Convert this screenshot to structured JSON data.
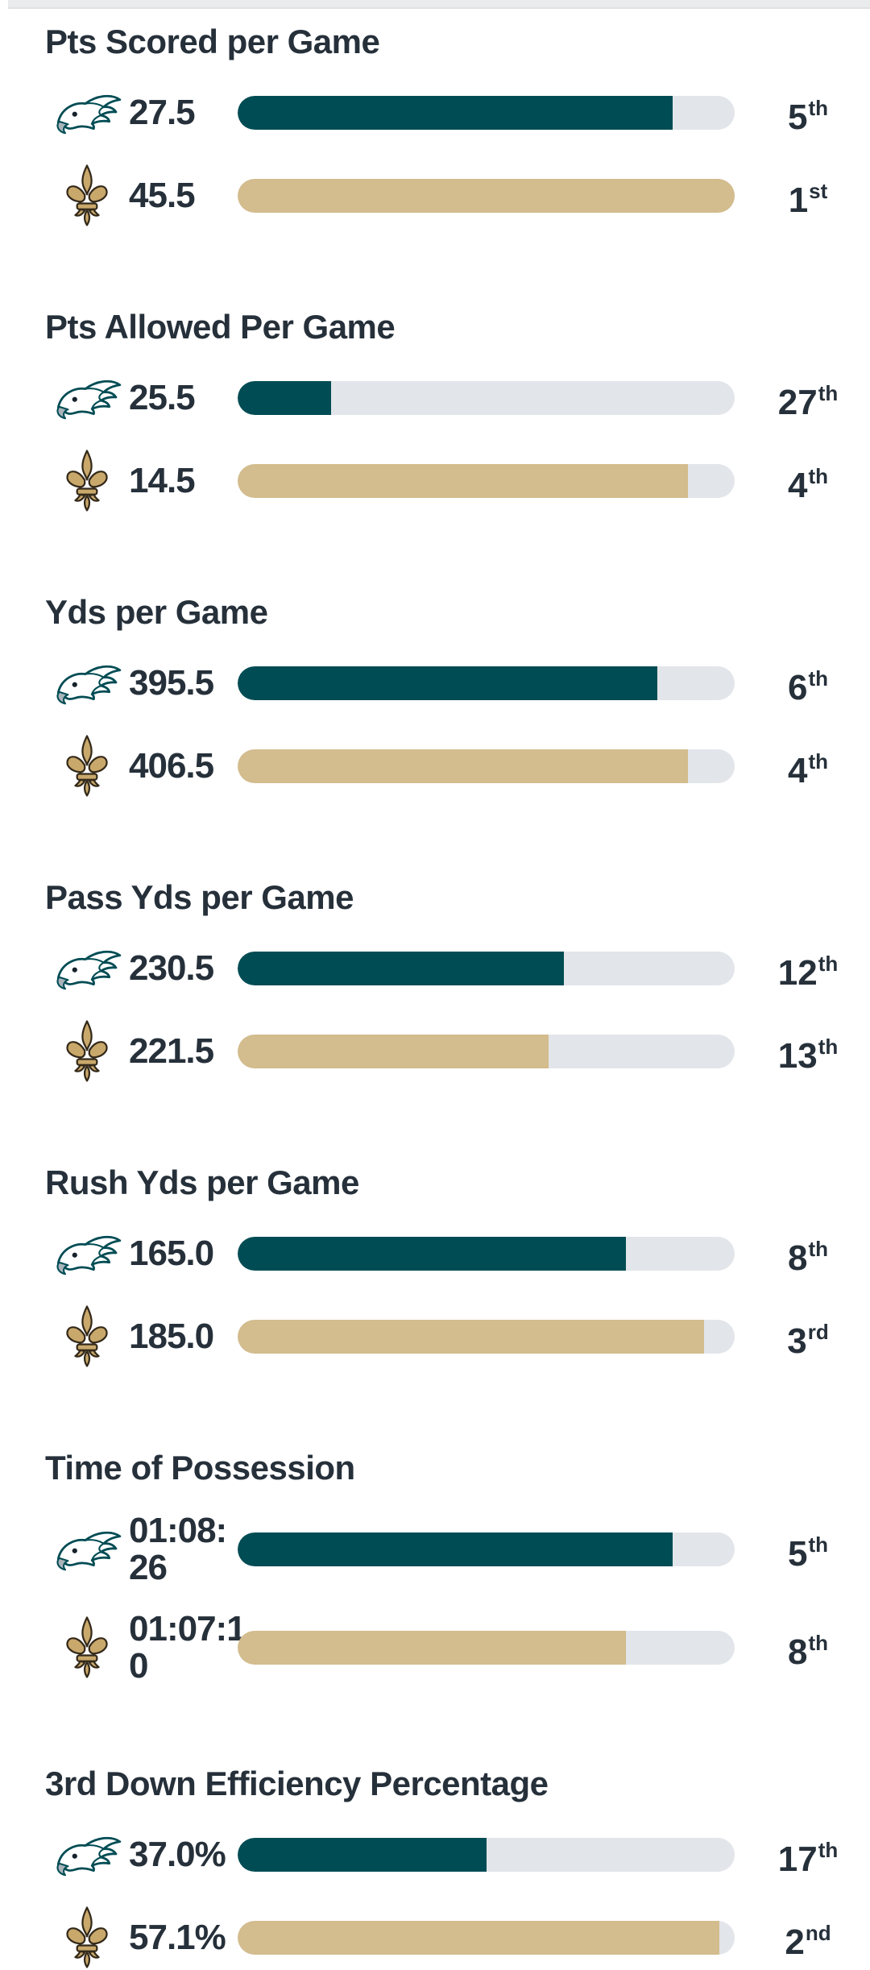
{
  "page": {
    "description": "Team stats comparison list",
    "text_color": "#26303A",
    "background_color": "#FFFFFF",
    "top_strip_color": "#E9EBED"
  },
  "teams": {
    "eagles": {
      "name": "Philadelphia Eagles",
      "color": "#004C54",
      "logo": "eagles-logo-icon"
    },
    "saints": {
      "name": "New Orleans Saints",
      "color": "#D3BC8D",
      "logo": "saints-logo-icon"
    }
  },
  "chart_data": {
    "type": "bar",
    "orientation": "horizontal",
    "track_color": "#E2E5E9",
    "rank_scale_max": 32,
    "fill_rule": "fill_pct = (33 - rank) / 32 * 100",
    "sections": [
      {
        "title": "Pts Scored per Game",
        "rows": [
          {
            "team": "eagles",
            "value": "27.5",
            "rank": "5",
            "rank_suffix": "th",
            "fill_pct": 87.5
          },
          {
            "team": "saints",
            "value": "45.5",
            "rank": "1",
            "rank_suffix": "st",
            "fill_pct": 100
          }
        ]
      },
      {
        "title": "Pts Allowed Per Game",
        "rows": [
          {
            "team": "eagles",
            "value": "25.5",
            "rank": "27",
            "rank_suffix": "th",
            "fill_pct": 18.8
          },
          {
            "team": "saints",
            "value": "14.5",
            "rank": "4",
            "rank_suffix": "th",
            "fill_pct": 90.6
          }
        ]
      },
      {
        "title": "Yds per Game",
        "rows": [
          {
            "team": "eagles",
            "value": "395.5",
            "rank": "6",
            "rank_suffix": "th",
            "fill_pct": 84.4
          },
          {
            "team": "saints",
            "value": "406.5",
            "rank": "4",
            "rank_suffix": "th",
            "fill_pct": 90.6
          }
        ]
      },
      {
        "title": "Pass Yds per Game",
        "rows": [
          {
            "team": "eagles",
            "value": "230.5",
            "rank": "12",
            "rank_suffix": "th",
            "fill_pct": 65.6
          },
          {
            "team": "saints",
            "value": "221.5",
            "rank": "13",
            "rank_suffix": "th",
            "fill_pct": 62.5
          }
        ]
      },
      {
        "title": "Rush Yds per Game",
        "rows": [
          {
            "team": "eagles",
            "value": "165.0",
            "rank": "8",
            "rank_suffix": "th",
            "fill_pct": 78.1
          },
          {
            "team": "saints",
            "value": "185.0",
            "rank": "3",
            "rank_suffix": "rd",
            "fill_pct": 93.8
          }
        ]
      },
      {
        "title": "Time of Possession",
        "rows": [
          {
            "team": "eagles",
            "value": "01:08:\n26",
            "rank": "5",
            "rank_suffix": "th",
            "fill_pct": 87.5
          },
          {
            "team": "saints",
            "value": "01:07:1\n0",
            "rank": "8",
            "rank_suffix": "th",
            "fill_pct": 78.1
          }
        ]
      },
      {
        "title": "3rd Down Efficiency Percentage",
        "rows": [
          {
            "team": "eagles",
            "value": "37.0%",
            "rank": "17",
            "rank_suffix": "th",
            "fill_pct": 50.0
          },
          {
            "team": "saints",
            "value": "57.1%",
            "rank": "2",
            "rank_suffix": "nd",
            "fill_pct": 96.9
          }
        ]
      }
    ]
  }
}
